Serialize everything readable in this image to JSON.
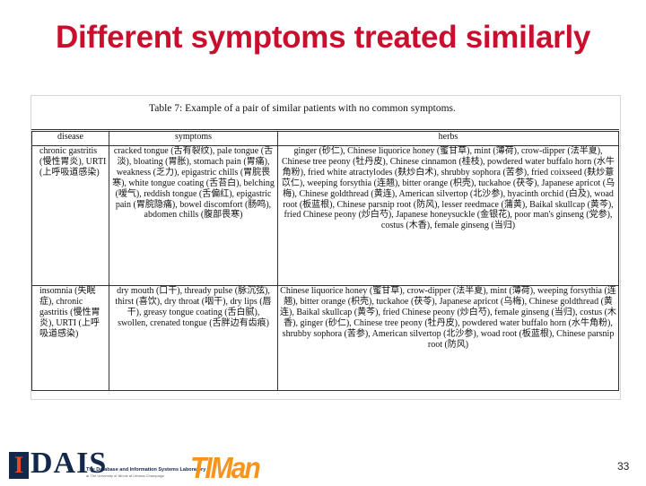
{
  "slide": {
    "title": "Different symptoms treated similarly",
    "page_number": "33"
  },
  "table": {
    "caption": "Table 7: Example of a pair of similar patients with no common symptoms.",
    "headers": [
      "disease",
      "symptoms",
      "herbs"
    ],
    "rows": [
      {
        "disease": "chronic gastritis (慢性胃炎), URTI (上呼吸道感染)",
        "symptoms": "cracked tongue (舌有裂纹), pale tongue (舌淡), bloating (胃胀), stomach pain (胃痛), weakness (乏力), epigastric chills (胃脘畏寒), white tongue coating (舌苔白), belching (嗳气), reddish tongue (舌偏红), epigastric pain (胃脘隐痛), bowel discomfort (肠鸣), abdomen chills (腹部畏寒)",
        "herbs": "ginger (砂仁), Chinese liquorice honey (蜜甘草), mint (薄荷), crow-dipper (法半夏), Chinese tree peony (牡丹皮), Chinese cinnamon (桂枝), powdered water buffalo horn (水牛角粉), fried white atractylodes (麸炒白术), shrubby sophora (苦参), fried coixseed (麸炒薏苡仁), weeping forsythia (连翘), bitter orange (枳壳), tuckahoe (茯苓), Japanese apricot (乌梅), Chinese goldthread (黄连), American silvertop (北沙参), hyacinth orchid (白及), woad root (板蓝根), Chinese parsnip root (防风), lesser reedmace (蒲黄), Baikal skullcap (黄芩), fried Chinese peony (炒白芍), Japanese honeysuckle (金银花), poor man's ginseng (党参), costus (木香), female ginseng (当归)"
      },
      {
        "disease": "insomnia (失眠症), chronic gastritis (慢性胃炎), URTI (上呼吸道感染)",
        "symptoms": "dry mouth (口干), thready pulse (脉沉弦), thirst (喜饮), dry throat (咽干), dry lips (唇干), greasy tongue coating (舌白腻), swollen, crenated tongue (舌胖边有齿痕)",
        "herbs": "Chinese liquorice honey (蜜甘草), crow-dipper (法半夏), mint (薄荷), weeping forsythia (连翘), bitter orange (枳壳), tuckahoe (茯苓), Japanese apricot (乌梅), Chinese goldthread (黄连), Baikal skullcap (黄芩), fried Chinese peony (炒白芍), female ginseng (当归), costus (木香), ginger (砂仁), Chinese tree peony (牡丹皮), powdered water buffalo horn (水牛角粉), shrubby sophora (苦参), American silvertop (北沙参), woad root (板蓝根), Chinese parsnip root (防风)"
      }
    ]
  },
  "footer": {
    "logo_letter": "I",
    "logo_word": "DAIS",
    "lab_name": "The Database and Information Systems Laboratory",
    "lab_sub": "at The University of Illinois at Urbana-Champaign",
    "timan_logo": "TIMan"
  },
  "colors": {
    "title": "#c8102e",
    "illinois_blue": "#13294b",
    "illinois_orange": "#e84a27",
    "timan_orange": "#f7941d"
  }
}
